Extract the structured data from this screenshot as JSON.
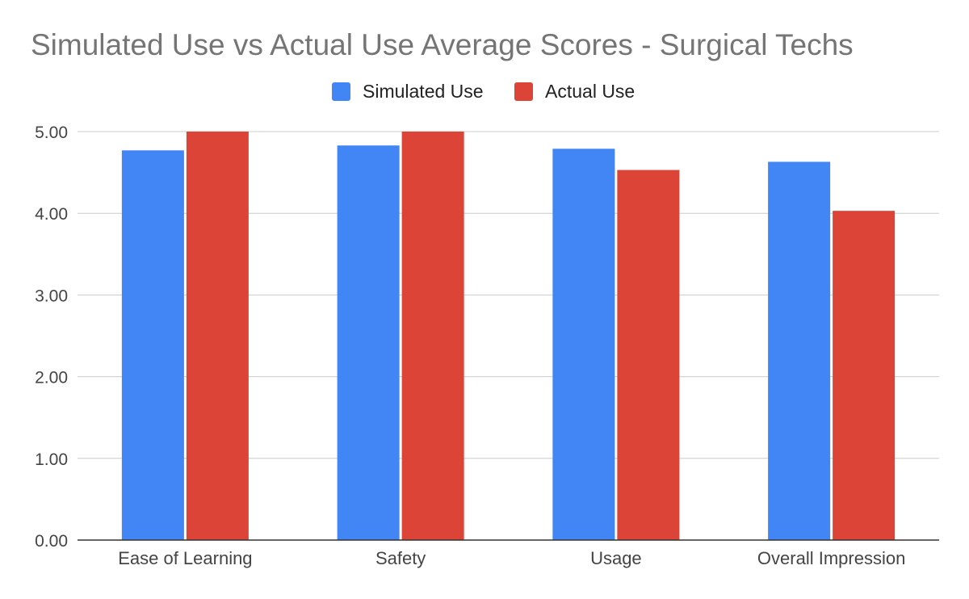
{
  "chart_data": {
    "type": "bar",
    "title": "Simulated Use vs Actual Use Average Scores - Surgical Techs",
    "xlabel": "",
    "ylabel": "",
    "categories": [
      "Ease of Learning",
      "Safety",
      "Usage",
      "Overall Impression"
    ],
    "series": [
      {
        "name": "Simulated Use",
        "color": "#4285f4",
        "values": [
          4.77,
          4.83,
          4.79,
          4.63
        ]
      },
      {
        "name": "Actual Use",
        "color": "#db4437",
        "values": [
          5.0,
          5.0,
          4.53,
          4.03
        ]
      }
    ],
    "ylim": [
      0,
      5
    ],
    "yticks": [
      "0.00",
      "1.00",
      "2.00",
      "3.00",
      "4.00",
      "5.00"
    ],
    "grid": true,
    "legend_position": "top-center"
  }
}
